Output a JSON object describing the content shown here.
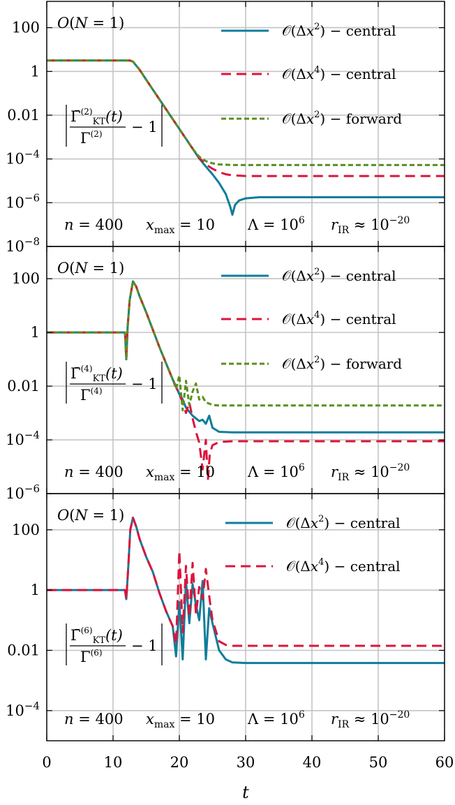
{
  "colors": {
    "central2": "#0f7d9a",
    "central4": "#dc143c",
    "forward2": "#5a8f1e",
    "grid": "#c4c4c4"
  },
  "x_tick_labels": [
    "0",
    "10",
    "20",
    "30",
    "40",
    "50",
    "60"
  ],
  "x_label": "t",
  "chart_data": [
    {
      "type": "line",
      "x_range": [
        0,
        60
      ],
      "y_scale": "log",
      "y_range_exponent": [
        -8,
        3.2
      ],
      "y_ticks": [
        {
          "exp": 2,
          "label": "100"
        },
        {
          "exp": 0,
          "label": "1"
        },
        {
          "exp": -2,
          "label": "0.01"
        },
        {
          "exp": -4,
          "label": "10^-4"
        },
        {
          "exp": -6,
          "label": "10^-6"
        },
        {
          "exp": -8,
          "label": "10^-8"
        }
      ],
      "grid": true,
      "model_label": "O(N = 1)",
      "ylabel_expression": "|Γ̄KT(2)(t) / Γ(2) − 1|",
      "params_text": "n = 400   xmax = 10   Λ = 10^6   rIR ≈ 10^-20",
      "legend_position": "top-right",
      "series": [
        {
          "name": "O(Δx²) − central",
          "style": "solid",
          "points": [
            [
              0,
              0.5
            ],
            [
              12.5,
              0.5
            ],
            [
              13,
              0.45
            ],
            [
              14,
              0.08
            ],
            [
              15,
              -0.38
            ],
            [
              16,
              -0.83
            ],
            [
              17,
              -1.28
            ],
            [
              18,
              -1.73
            ],
            [
              19,
              -2.18
            ],
            [
              20,
              -2.63
            ],
            [
              21,
              -3.08
            ],
            [
              22,
              -3.53
            ],
            [
              23,
              -3.98
            ],
            [
              24,
              -4.35
            ],
            [
              25,
              -4.7
            ],
            [
              26,
              -5.1
            ],
            [
              27,
              -5.6
            ],
            [
              27.7,
              -6.2
            ],
            [
              28,
              -6.55
            ],
            [
              28.4,
              -6.1
            ],
            [
              29,
              -5.9
            ],
            [
              30,
              -5.8
            ],
            [
              32,
              -5.75
            ],
            [
              35,
              -5.75
            ],
            [
              60,
              -5.75
            ]
          ]
        },
        {
          "name": "O(Δx⁴) − central",
          "style": "dashed",
          "points": [
            [
              0,
              0.5
            ],
            [
              12.5,
              0.5
            ],
            [
              13,
              0.45
            ],
            [
              14,
              0.08
            ],
            [
              15,
              -0.38
            ],
            [
              16,
              -0.83
            ],
            [
              17,
              -1.28
            ],
            [
              18,
              -1.73
            ],
            [
              19,
              -2.18
            ],
            [
              20,
              -2.63
            ],
            [
              21,
              -3.08
            ],
            [
              22,
              -3.53
            ],
            [
              23,
              -3.95
            ],
            [
              24,
              -4.25
            ],
            [
              25,
              -4.45
            ],
            [
              26,
              -4.6
            ],
            [
              27,
              -4.7
            ],
            [
              28,
              -4.75
            ],
            [
              30,
              -4.78
            ],
            [
              60,
              -4.78
            ]
          ]
        },
        {
          "name": "O(Δx²) − forward",
          "style": "dotted",
          "points": [
            [
              0,
              0.5
            ],
            [
              12.5,
              0.5
            ],
            [
              13,
              0.45
            ],
            [
              14,
              0.08
            ],
            [
              15,
              -0.38
            ],
            [
              16,
              -0.83
            ],
            [
              17,
              -1.28
            ],
            [
              18,
              -1.73
            ],
            [
              19,
              -2.18
            ],
            [
              20,
              -2.63
            ],
            [
              21,
              -3.08
            ],
            [
              22,
              -3.53
            ],
            [
              23,
              -3.9
            ],
            [
              24,
              -4.1
            ],
            [
              25,
              -4.2
            ],
            [
              26,
              -4.25
            ],
            [
              28,
              -4.28
            ],
            [
              60,
              -4.28
            ]
          ]
        }
      ]
    },
    {
      "type": "line",
      "x_range": [
        0,
        60
      ],
      "y_scale": "log",
      "y_range_exponent": [
        -6,
        3.2
      ],
      "y_ticks": [
        {
          "exp": 2,
          "label": "100"
        },
        {
          "exp": 0,
          "label": "1"
        },
        {
          "exp": -2,
          "label": "0.01"
        },
        {
          "exp": -4,
          "label": "10^-4"
        },
        {
          "exp": -6,
          "label": "10^-6"
        }
      ],
      "grid": true,
      "model_label": "O(N = 1)",
      "ylabel_expression": "|Γ̄KT(4)(t) / Γ(4) − 1|",
      "params_text": "n = 400   xmax = 10   Λ = 10^6   rIR ≈ 10^-20",
      "legend_position": "top-right",
      "series": [
        {
          "name": "O(Δx²) − central",
          "style": "solid",
          "points": [
            [
              0,
              0
            ],
            [
              11.8,
              0
            ],
            [
              12,
              -1
            ],
            [
              12.2,
              0.2
            ],
            [
              12.5,
              1.2
            ],
            [
              13,
              1.9
            ],
            [
              13.5,
              1.7
            ],
            [
              14,
              1.35
            ],
            [
              15,
              0.75
            ],
            [
              16,
              0.1
            ],
            [
              17,
              -0.55
            ],
            [
              18,
              -1.15
            ],
            [
              19,
              -1.75
            ],
            [
              20,
              -2.3
            ],
            [
              20.5,
              -2.5
            ],
            [
              21,
              -2.8
            ],
            [
              22,
              -3.1
            ],
            [
              23,
              -3.3
            ],
            [
              23.5,
              -3.25
            ],
            [
              24,
              -3.4
            ],
            [
              24.5,
              -3.1
            ],
            [
              25,
              -3.55
            ],
            [
              26,
              -3.7
            ],
            [
              28,
              -3.72
            ],
            [
              60,
              -3.72
            ]
          ]
        },
        {
          "name": "O(Δx⁴) − central",
          "style": "dashed",
          "points": [
            [
              0,
              0
            ],
            [
              11.8,
              0
            ],
            [
              12,
              -1
            ],
            [
              12.2,
              0.2
            ],
            [
              12.5,
              1.2
            ],
            [
              13,
              1.9
            ],
            [
              13.5,
              1.7
            ],
            [
              14,
              1.35
            ],
            [
              15,
              0.75
            ],
            [
              16,
              0.1
            ],
            [
              17,
              -0.55
            ],
            [
              18,
              -1.15
            ],
            [
              19,
              -1.75
            ],
            [
              20,
              -2.3
            ],
            [
              20.5,
              -2.6
            ],
            [
              21,
              -3.0
            ],
            [
              21.5,
              -2.6
            ],
            [
              22,
              -3.2
            ],
            [
              22.5,
              -3.7
            ],
            [
              23,
              -4.1
            ],
            [
              23.5,
              -5.1
            ],
            [
              24,
              -4.0
            ],
            [
              24.3,
              -5.5
            ],
            [
              24.6,
              -4.5
            ],
            [
              25,
              -4.2
            ],
            [
              26,
              -4.08
            ],
            [
              28,
              -4.05
            ],
            [
              60,
              -4.05
            ]
          ]
        },
        {
          "name": "O(Δx²) − forward",
          "style": "dotted",
          "points": [
            [
              0,
              0
            ],
            [
              11.8,
              0
            ],
            [
              12,
              -1
            ],
            [
              12.2,
              0.2
            ],
            [
              12.5,
              1.2
            ],
            [
              13,
              1.9
            ],
            [
              13.5,
              1.7
            ],
            [
              14,
              1.35
            ],
            [
              15,
              0.75
            ],
            [
              16,
              0.1
            ],
            [
              17,
              -0.55
            ],
            [
              18,
              -1.15
            ],
            [
              19,
              -1.75
            ],
            [
              19.5,
              -2.1
            ],
            [
              20,
              -1.6
            ],
            [
              20.5,
              -2.9
            ],
            [
              21,
              -1.8
            ],
            [
              21.5,
              -2.7
            ],
            [
              22,
              -2.2
            ],
            [
              22.5,
              -1.9
            ],
            [
              23,
              -2.5
            ],
            [
              23.5,
              -2.4
            ],
            [
              24,
              -2.6
            ],
            [
              25,
              -2.7
            ],
            [
              26,
              -2.72
            ],
            [
              28,
              -2.72
            ],
            [
              60,
              -2.72
            ]
          ]
        }
      ]
    },
    {
      "type": "line",
      "x_range": [
        0,
        60
      ],
      "y_scale": "log",
      "y_range_exponent": [
        -5,
        3.2
      ],
      "y_ticks": [
        {
          "exp": 2,
          "label": "100"
        },
        {
          "exp": 0,
          "label": "1"
        },
        {
          "exp": -2,
          "label": "0.01"
        },
        {
          "exp": -4,
          "label": "10^-4"
        }
      ],
      "grid": true,
      "model_label": "O(N = 1)",
      "ylabel_expression": "|Γ̄KT(6)(t) / Γ(6) − 1|",
      "params_text": "n = 400   xmax = 10   Λ = 10^6   rIR ≈ 10^-20",
      "legend_position": "top-right",
      "series": [
        {
          "name": "O(Δx²) − central",
          "style": "solid",
          "points": [
            [
              0,
              0
            ],
            [
              11.8,
              0
            ],
            [
              12,
              -0.3
            ],
            [
              12.3,
              0.8
            ],
            [
              12.6,
              2.0
            ],
            [
              13,
              2.4
            ],
            [
              13.5,
              2.1
            ],
            [
              14,
              1.7
            ],
            [
              15,
              1.1
            ],
            [
              16,
              0.6
            ],
            [
              17,
              -0.1
            ],
            [
              18,
              -0.7
            ],
            [
              19,
              -1.2
            ],
            [
              19.5,
              -2.2
            ],
            [
              20,
              -0.4
            ],
            [
              20.5,
              -2.3
            ],
            [
              21,
              0.3
            ],
            [
              21.5,
              -1.1
            ],
            [
              22,
              0.2
            ],
            [
              22.5,
              -0.5
            ],
            [
              23,
              -1.0
            ],
            [
              23.5,
              0.3
            ],
            [
              24,
              -2.3
            ],
            [
              24.5,
              -0.6
            ],
            [
              25,
              -1.1
            ],
            [
              26,
              -2.0
            ],
            [
              27,
              -2.3
            ],
            [
              28,
              -2.4
            ],
            [
              30,
              -2.42
            ],
            [
              60,
              -2.42
            ]
          ]
        },
        {
          "name": "O(Δx⁴) − central",
          "style": "dashed",
          "points": [
            [
              0,
              0
            ],
            [
              11.8,
              0
            ],
            [
              12,
              -0.3
            ],
            [
              12.3,
              0.8
            ],
            [
              12.6,
              2.0
            ],
            [
              13,
              2.4
            ],
            [
              13.5,
              2.1
            ],
            [
              14,
              1.7
            ],
            [
              15,
              1.1
            ],
            [
              16,
              0.6
            ],
            [
              17,
              -0.1
            ],
            [
              18,
              -0.7
            ],
            [
              19,
              -1.2
            ],
            [
              19.5,
              -1.8
            ],
            [
              20,
              1.3
            ],
            [
              20.5,
              -1.4
            ],
            [
              21,
              0.8
            ],
            [
              21.5,
              -0.9
            ],
            [
              22,
              0.9
            ],
            [
              22.5,
              -0.8
            ],
            [
              23,
              0.1
            ],
            [
              23.5,
              -0.3
            ],
            [
              24,
              0.7
            ],
            [
              24.5,
              -0.2
            ],
            [
              25,
              -1.0
            ],
            [
              26,
              -1.7
            ],
            [
              27,
              -1.82
            ],
            [
              28,
              -1.85
            ],
            [
              60,
              -1.85
            ]
          ]
        }
      ]
    }
  ]
}
